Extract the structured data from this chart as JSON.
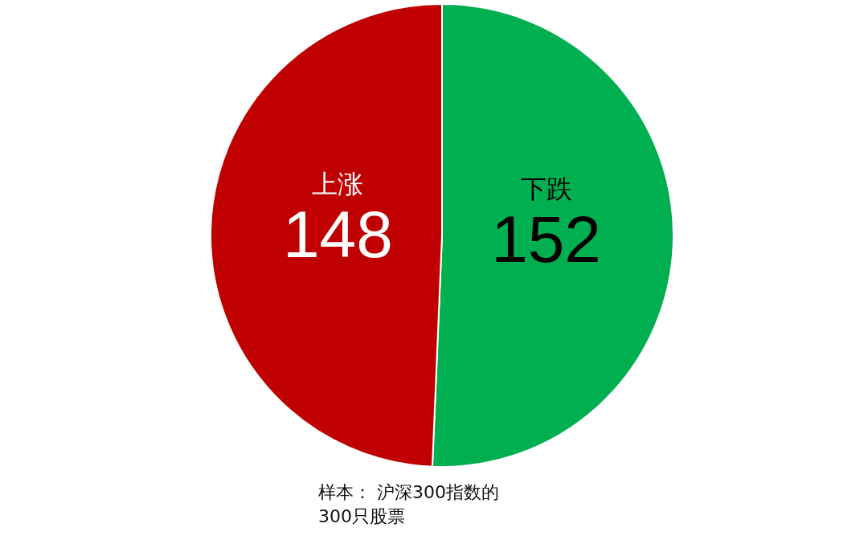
{
  "chart_data": {
    "type": "pie",
    "categories": [
      "下跌",
      "上涨"
    ],
    "values": [
      152,
      148
    ],
    "colors": [
      "#00b050",
      "#c00000"
    ],
    "data_labels": true,
    "annotations": [
      "样本：  沪深300指数的300只股票"
    ]
  }
}
